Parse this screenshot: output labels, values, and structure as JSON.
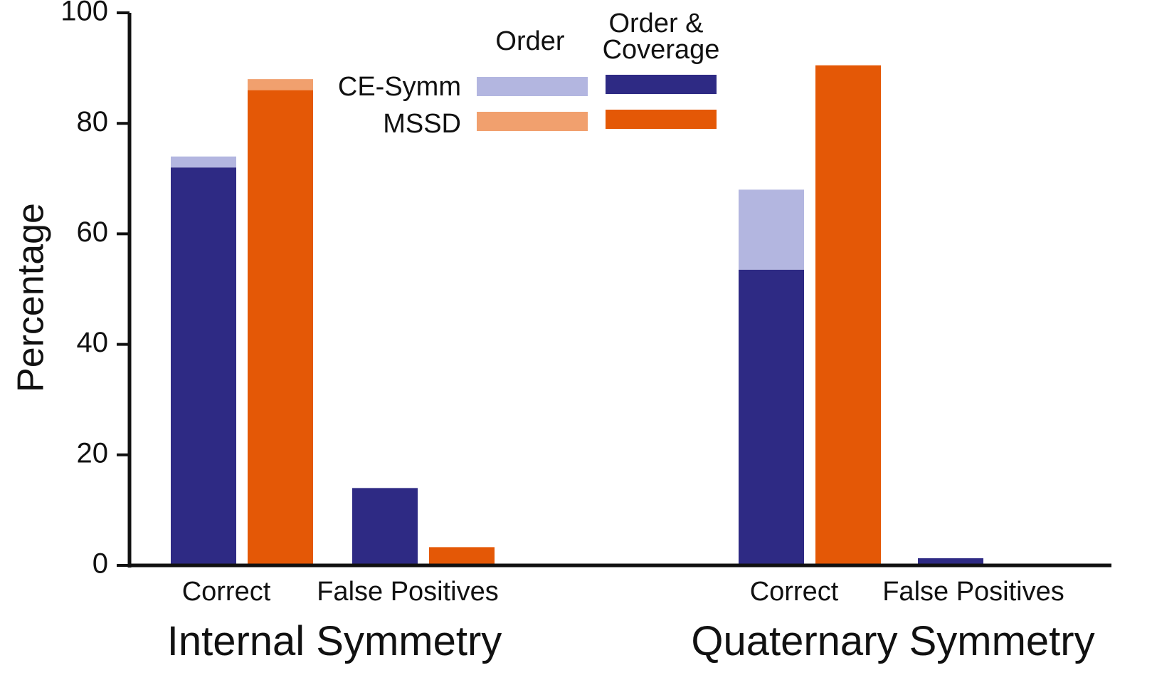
{
  "chart_data": {
    "type": "bar",
    "ylabel": "Percentage",
    "ylim": [
      0,
      100
    ],
    "yticks": [
      0,
      20,
      40,
      60,
      80,
      100
    ],
    "groups": [
      {
        "name": "Internal Symmetry",
        "categories": [
          {
            "name": "Correct",
            "bars": [
              {
                "method": "CE-Symm",
                "order_and_coverage": 72,
                "order": 74
              },
              {
                "method": "MSSD",
                "order_and_coverage": 86,
                "order": 88
              }
            ]
          },
          {
            "name": "False Positives",
            "bars": [
              {
                "method": "CE-Symm",
                "order_and_coverage": 14,
                "order": 14
              },
              {
                "method": "MSSD",
                "order_and_coverage": 3.3,
                "order": 3.3
              }
            ]
          }
        ]
      },
      {
        "name": "Quaternary Symmetry",
        "categories": [
          {
            "name": "Correct",
            "bars": [
              {
                "method": "CE-Symm",
                "order_and_coverage": 53.5,
                "order": 68
              },
              {
                "method": "MSSD",
                "order_and_coverage": 90.5,
                "order": 90.5
              }
            ]
          },
          {
            "name": "False Positives",
            "bars": [
              {
                "method": "CE-Symm",
                "order_and_coverage": 1.3,
                "order": 1.3
              },
              {
                "method": "MSSD",
                "order_and_coverage": 0,
                "order": 0
              }
            ]
          }
        ]
      }
    ],
    "legend": {
      "columns": [
        "Order",
        "Order &",
        "Coverage"
      ],
      "rows": [
        "CE-Symm",
        "MSSD"
      ]
    },
    "colors": {
      "CE-Symm": {
        "order": "#b3b6e0",
        "order_and_coverage": "#2e2a84"
      },
      "MSSD": {
        "order": "#f1a06e",
        "order_and_coverage": "#e45806"
      }
    }
  }
}
